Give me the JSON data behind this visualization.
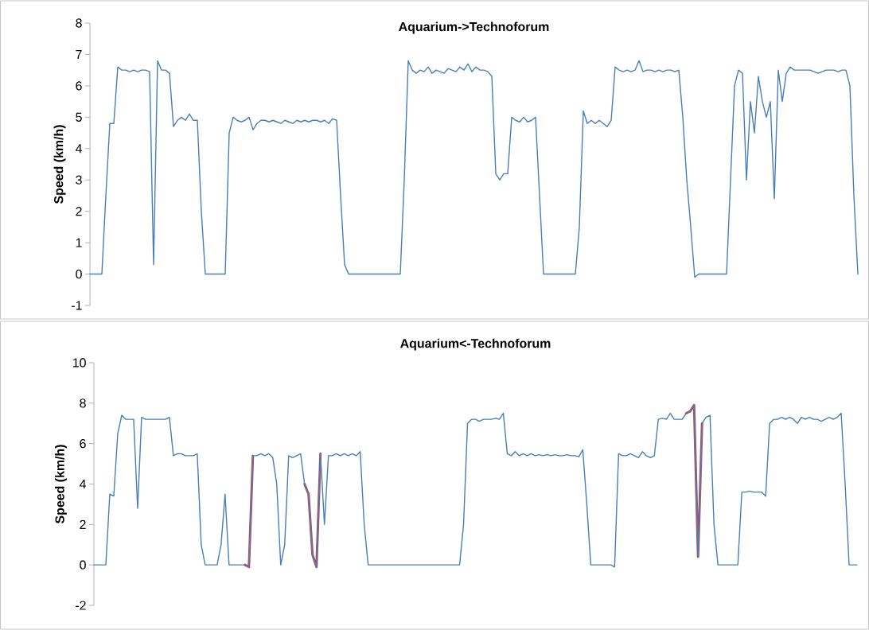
{
  "chart_data": [
    {
      "type": "line",
      "title": "Aquarium->Technoforum",
      "ylabel": "Speed (km/h)",
      "tick_labels": "y",
      "ylim": [
        -1,
        8
      ],
      "yticks": [
        -1,
        0,
        1,
        2,
        3,
        4,
        5,
        6,
        7,
        8
      ],
      "categories": [
        null,
        null,
        null,
        null,
        null,
        null,
        null,
        null,
        null,
        null,
        null,
        null,
        null,
        null,
        null,
        null,
        null,
        null,
        null,
        null,
        null,
        null,
        null,
        null,
        null,
        null,
        null,
        null,
        null,
        null,
        null,
        null,
        null,
        null,
        null,
        null,
        null,
        null,
        null,
        null,
        null,
        null,
        null,
        null,
        null,
        null,
        null,
        null,
        null,
        null,
        null,
        null,
        null,
        null,
        null,
        null,
        null,
        null,
        null,
        null,
        null,
        null,
        null,
        null,
        null,
        null,
        null,
        null,
        null,
        null,
        null,
        null,
        null,
        null,
        null,
        null,
        null,
        null,
        null,
        null,
        null,
        null,
        null,
        null,
        null,
        null,
        null,
        null,
        null,
        null,
        null,
        null,
        null,
        null,
        null,
        null,
        null,
        null,
        null,
        null,
        null,
        null,
        null,
        null,
        null,
        null,
        null,
        null,
        null,
        null,
        null,
        null,
        null,
        null,
        null,
        null,
        null,
        null,
        null,
        null,
        null,
        null,
        null,
        null,
        null,
        null,
        null,
        null,
        null,
        null,
        null,
        null,
        null,
        null,
        null,
        null,
        null,
        null,
        null,
        null,
        null,
        null,
        null,
        null,
        null,
        null,
        null,
        null,
        null,
        null,
        null,
        null,
        null,
        null,
        null,
        null,
        null,
        null,
        null,
        null,
        null,
        null,
        null,
        null,
        null,
        null,
        null,
        null,
        null,
        null,
        null,
        null,
        null,
        null,
        null,
        null,
        null,
        null,
        null,
        null,
        null,
        null,
        null,
        null,
        null,
        null,
        null,
        null,
        null,
        null,
        null,
        null,
        null,
        null
      ],
      "series": [
        {
          "color": "#4a7ebb",
          "values": [
            0,
            0,
            0,
            0,
            2.5,
            4.8,
            4.8,
            6.6,
            6.5,
            6.5,
            6.45,
            6.5,
            6.45,
            6.5,
            6.5,
            6.45,
            0.3,
            6.8,
            6.5,
            6.5,
            6.4,
            4.7,
            4.9,
            5.0,
            4.9,
            5.1,
            4.9,
            4.9,
            2.0,
            0,
            0,
            0,
            0,
            0,
            0,
            4.5,
            5.0,
            4.9,
            4.85,
            4.9,
            5.0,
            4.6,
            4.8,
            4.9,
            4.9,
            4.85,
            4.9,
            4.85,
            4.8,
            4.9,
            4.85,
            4.8,
            4.9,
            4.85,
            4.9,
            4.85,
            4.9,
            4.9,
            4.85,
            4.9,
            4.8,
            4.95,
            4.9,
            2.5,
            0.3,
            0,
            0,
            0,
            0,
            0,
            0,
            0,
            0,
            0,
            0,
            0,
            0,
            0,
            0,
            3.0,
            6.8,
            6.5,
            6.4,
            6.5,
            6.45,
            6.6,
            6.4,
            6.5,
            6.45,
            6.4,
            6.55,
            6.5,
            6.45,
            6.6,
            6.5,
            6.7,
            6.45,
            6.6,
            6.5,
            6.5,
            6.45,
            6.3,
            3.2,
            3.0,
            3.2,
            3.2,
            5.0,
            4.9,
            4.85,
            5.0,
            4.85,
            4.9,
            5.0,
            2.5,
            0,
            0,
            0,
            0,
            0,
            0,
            0,
            0,
            0,
            1.5,
            5.2,
            4.8,
            4.9,
            4.8,
            4.9,
            4.8,
            4.7,
            4.9,
            6.6,
            6.5,
            6.45,
            6.5,
            6.45,
            6.5,
            6.8,
            6.45,
            6.5,
            6.5,
            6.45,
            6.5,
            6.45,
            6.5,
            6.5,
            6.45,
            6.5,
            5.0,
            3.0,
            1.5,
            -0.1,
            0,
            0,
            0,
            0,
            0,
            0,
            0,
            0,
            3.0,
            6.0,
            6.5,
            6.4,
            3.0,
            5.5,
            4.5,
            6.3,
            5.5,
            5.0,
            5.5,
            2.4,
            6.5,
            5.5,
            6.4,
            6.6,
            6.5,
            6.5,
            6.5,
            6.5,
            6.5,
            6.45,
            6.4,
            6.45,
            6.5,
            6.5,
            6.5,
            6.45,
            6.5,
            6.5,
            6.0,
            2.5,
            0
          ]
        }
      ]
    },
    {
      "type": "line",
      "title": "Aquarium<-Technoforum",
      "ylabel": "Speed (km/h)",
      "tick_labels": "y",
      "ylim": [
        -2,
        10
      ],
      "yticks": [
        -2,
        0,
        2,
        4,
        6,
        8,
        10
      ],
      "categories": [
        null,
        null,
        null,
        null,
        null,
        null,
        null,
        null,
        null,
        null,
        null,
        null,
        null,
        null,
        null,
        null,
        null,
        null,
        null,
        null,
        null,
        null,
        null,
        null,
        null,
        null,
        null,
        null,
        null,
        null,
        null,
        null,
        null,
        null,
        null,
        null,
        null,
        null,
        null,
        null,
        null,
        null,
        null,
        null,
        null,
        null,
        null,
        null,
        null,
        null,
        null,
        null,
        null,
        null,
        null,
        null,
        null,
        null,
        null,
        null,
        null,
        null,
        null,
        null,
        null,
        null,
        null,
        null,
        null,
        null,
        null,
        null,
        null,
        null,
        null,
        null,
        null,
        null,
        null,
        null,
        null,
        null,
        null,
        null,
        null,
        null,
        null,
        null,
        null,
        null,
        null,
        null,
        null,
        null,
        null,
        null,
        null,
        null,
        null,
        null,
        null,
        null,
        null,
        null,
        null,
        null,
        null,
        null,
        null,
        null,
        null,
        null,
        null,
        null,
        null,
        null,
        null,
        null,
        null,
        null,
        null,
        null,
        null,
        null,
        null,
        null,
        null,
        null,
        null,
        null,
        null,
        null,
        null,
        null,
        null,
        null,
        null,
        null,
        null,
        null,
        null,
        null,
        null,
        null,
        null,
        null,
        null,
        null,
        null,
        null,
        null,
        null,
        null,
        null,
        null,
        null,
        null,
        null,
        null,
        null,
        null,
        null,
        null,
        null,
        null,
        null,
        null,
        null,
        null,
        null,
        null,
        null,
        null,
        null,
        null,
        null,
        null,
        null,
        null,
        null,
        null,
        null,
        null,
        null,
        null,
        null,
        null,
        null,
        null,
        null,
        null,
        null,
        null
      ],
      "series": [
        {
          "color": "#be4b48",
          "values": [
            null,
            null,
            null,
            null,
            null,
            null,
            null,
            null,
            null,
            null,
            null,
            null,
            null,
            null,
            null,
            null,
            null,
            null,
            null,
            null,
            null,
            null,
            null,
            null,
            null,
            null,
            null,
            null,
            null,
            null,
            null,
            null,
            null,
            null,
            null,
            null,
            null,
            null,
            0,
            -0.1,
            5.4,
            null,
            null,
            null,
            null,
            null,
            null,
            null,
            null,
            null,
            null,
            null,
            null,
            null,
            null,
            null,
            null,
            null,
            null,
            null,
            null,
            null,
            null,
            null,
            null,
            null,
            null,
            null,
            null,
            null,
            null,
            null,
            null,
            null,
            null,
            null,
            null,
            null,
            null,
            null,
            null,
            null,
            null,
            null,
            null,
            null,
            null,
            null,
            null,
            null,
            null,
            null,
            null,
            null,
            null,
            null,
            null,
            null,
            null,
            null,
            null,
            null,
            null,
            null,
            null,
            null,
            null,
            null,
            null,
            null,
            null,
            null,
            null,
            null,
            null,
            null,
            null,
            null,
            null,
            null,
            null,
            null,
            null,
            null,
            null,
            null,
            null,
            null,
            null,
            null,
            null,
            null,
            null,
            null,
            null,
            null,
            null,
            null,
            null,
            null,
            null,
            null,
            null,
            null,
            null,
            null,
            null,
            null,
            null,
            null,
            null,
            null,
            null,
            null,
            null,
            null,
            null,
            null,
            null,
            null,
            null,
            null,
            null,
            null,
            null,
            null,
            null,
            null,
            null,
            null,
            null,
            null,
            null,
            null,
            null,
            null,
            null,
            null,
            null,
            null,
            null,
            null,
            null,
            null,
            null,
            null,
            null,
            null,
            null,
            null,
            null,
            null,
            null
          ]
        },
        {
          "color": "#be4b48",
          "values": [
            null,
            null,
            null,
            null,
            null,
            null,
            null,
            null,
            null,
            null,
            null,
            null,
            null,
            null,
            null,
            null,
            null,
            null,
            null,
            null,
            null,
            null,
            null,
            null,
            null,
            null,
            null,
            null,
            null,
            null,
            null,
            null,
            null,
            null,
            null,
            null,
            null,
            null,
            null,
            null,
            null,
            null,
            null,
            null,
            null,
            null,
            null,
            null,
            null,
            null,
            null,
            null,
            null,
            4.0,
            3.5,
            0.5,
            -0.1,
            5.5,
            null,
            null,
            null,
            null,
            null,
            null,
            null,
            null,
            null,
            null,
            null,
            null,
            null,
            null,
            null,
            null,
            null,
            null,
            null,
            null,
            null,
            null,
            null,
            null,
            null,
            null,
            null,
            null,
            null,
            null,
            null,
            null,
            null,
            null,
            null,
            null,
            null,
            null,
            null,
            null,
            null,
            null,
            null,
            null,
            null,
            null,
            null,
            null,
            null,
            null,
            null,
            null,
            null,
            null,
            null,
            null,
            null,
            null,
            null,
            null,
            null,
            null,
            null,
            null,
            null,
            null,
            null,
            null,
            null,
            null,
            null,
            null,
            null,
            null,
            null,
            null,
            null,
            null,
            null,
            null,
            null,
            null,
            null,
            null,
            null,
            null,
            null,
            null,
            null,
            null,
            null,
            null,
            null,
            null,
            null,
            null,
            null,
            null,
            null,
            null,
            null,
            null,
            null,
            null,
            null,
            null,
            null,
            null,
            null,
            null,
            null,
            null,
            null,
            null,
            null,
            null,
            null,
            null,
            null,
            null,
            null,
            null,
            null,
            null,
            null,
            null,
            null,
            null,
            null,
            null,
            null,
            null,
            null,
            null,
            null
          ]
        },
        {
          "color": "#be4b48",
          "values": [
            null,
            null,
            null,
            null,
            null,
            null,
            null,
            null,
            null,
            null,
            null,
            null,
            null,
            null,
            null,
            null,
            null,
            null,
            null,
            null,
            null,
            null,
            null,
            null,
            null,
            null,
            null,
            null,
            null,
            null,
            null,
            null,
            null,
            null,
            null,
            null,
            null,
            null,
            null,
            null,
            null,
            null,
            null,
            null,
            null,
            null,
            null,
            null,
            null,
            null,
            null,
            null,
            null,
            null,
            null,
            null,
            null,
            null,
            null,
            null,
            null,
            null,
            null,
            null,
            null,
            null,
            null,
            null,
            null,
            null,
            null,
            null,
            null,
            null,
            null,
            null,
            null,
            null,
            null,
            null,
            null,
            null,
            null,
            null,
            null,
            null,
            null,
            null,
            null,
            null,
            null,
            null,
            null,
            null,
            null,
            null,
            null,
            null,
            null,
            null,
            null,
            null,
            null,
            null,
            null,
            null,
            null,
            null,
            null,
            null,
            null,
            null,
            null,
            null,
            null,
            null,
            null,
            null,
            null,
            null,
            null,
            null,
            null,
            null,
            null,
            null,
            null,
            null,
            null,
            null,
            null,
            null,
            null,
            null,
            null,
            null,
            null,
            null,
            null,
            null,
            null,
            null,
            null,
            null,
            null,
            null,
            null,
            null,
            null,
            7.5,
            7.6,
            7.9,
            0.4,
            7.0,
            null,
            null,
            null,
            null,
            null,
            null,
            null,
            null,
            null,
            null,
            null,
            null,
            null,
            null,
            null,
            null,
            null,
            null,
            null,
            null,
            null,
            null,
            null,
            null,
            null,
            null,
            null,
            null,
            null,
            null,
            null,
            null,
            null,
            null,
            null,
            null,
            null,
            null,
            null
          ]
        },
        {
          "color": "#4a7ebb",
          "values": [
            0,
            0,
            0,
            0,
            3.5,
            3.4,
            6.5,
            7.4,
            7.2,
            7.2,
            7.2,
            2.8,
            7.3,
            7.2,
            7.2,
            7.2,
            7.2,
            7.2,
            7.2,
            7.3,
            5.4,
            5.5,
            5.5,
            5.4,
            5.4,
            5.4,
            5.5,
            1.0,
            0,
            0,
            0,
            0,
            1.0,
            3.5,
            0,
            0,
            0,
            0,
            0,
            -0.1,
            5.4,
            5.4,
            5.5,
            5.4,
            5.5,
            5.3,
            4.0,
            0,
            1.0,
            5.4,
            5.3,
            5.4,
            5.5,
            4.0,
            3.5,
            0.5,
            -0.1,
            5.5,
            2.0,
            5.4,
            5.4,
            5.5,
            5.4,
            5.5,
            5.4,
            5.5,
            5.4,
            5.6,
            2.0,
            0,
            0,
            0,
            0,
            0,
            0,
            0,
            0,
            0,
            0,
            0,
            0,
            0,
            0,
            0,
            0,
            0,
            0,
            0,
            0,
            0,
            0,
            0,
            0,
            2.0,
            7.0,
            7.2,
            7.2,
            7.1,
            7.2,
            7.2,
            7.2,
            7.25,
            7.2,
            7.5,
            5.5,
            5.4,
            5.6,
            5.4,
            5.5,
            5.4,
            5.5,
            5.4,
            5.45,
            5.4,
            5.45,
            5.4,
            5.45,
            5.4,
            5.4,
            5.45,
            5.4,
            5.4,
            5.35,
            5.7,
            3.0,
            0,
            0,
            0,
            0,
            0,
            0,
            -0.1,
            5.5,
            5.4,
            5.4,
            5.5,
            5.4,
            5.3,
            5.6,
            5.4,
            5.3,
            5.4,
            7.2,
            7.25,
            7.2,
            7.5,
            7.2,
            7.2,
            7.2,
            7.5,
            7.6,
            7.9,
            0.4,
            7.0,
            7.3,
            7.4,
            2.0,
            0,
            0,
            0,
            0,
            0,
            0,
            3.6,
            3.6,
            3.65,
            3.6,
            3.6,
            3.6,
            3.4,
            7.0,
            7.2,
            7.2,
            7.3,
            7.2,
            7.3,
            7.2,
            7.0,
            7.3,
            7.2,
            7.3,
            7.2,
            7.2,
            7.1,
            7.2,
            7.3,
            7.2,
            7.3,
            7.5,
            4.0,
            0,
            0,
            0
          ]
        }
      ]
    }
  ]
}
